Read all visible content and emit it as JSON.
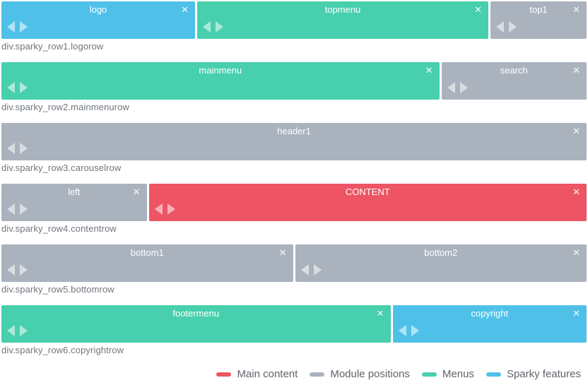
{
  "colors": {
    "content": "#ED5565",
    "module": "#AAB2BD",
    "menu": "#48CFAD",
    "sparky": "#4FC1E9"
  },
  "icons": {
    "close": "✕"
  },
  "rows": [
    {
      "label": "div.sparky_row1.logorow",
      "blocks": [
        {
          "name": "logo",
          "type": "sparky"
        },
        {
          "name": "topmenu",
          "type": "menu"
        },
        {
          "name": "top1",
          "type": "module"
        }
      ]
    },
    {
      "label": "div.sparky_row2.mainmenurow",
      "blocks": [
        {
          "name": "mainmenu",
          "type": "menu"
        },
        {
          "name": "search",
          "type": "module"
        }
      ]
    },
    {
      "label": "div.sparky_row3.carouselrow",
      "blocks": [
        {
          "name": "header1",
          "type": "module"
        }
      ]
    },
    {
      "label": "div.sparky_row4.contentrow",
      "blocks": [
        {
          "name": "left",
          "type": "module"
        },
        {
          "name": "CONTENT",
          "type": "content"
        }
      ]
    },
    {
      "label": "div.sparky_row5.bottomrow",
      "blocks": [
        {
          "name": "bottom1",
          "type": "module"
        },
        {
          "name": "bottom2",
          "type": "module"
        }
      ]
    },
    {
      "label": "div.sparky_row6.copyrightrow",
      "blocks": [
        {
          "name": "footermenu",
          "type": "menu"
        },
        {
          "name": "copyright",
          "type": "sparky"
        }
      ]
    }
  ],
  "legend": [
    {
      "label": "Main content",
      "color": "#ED5565"
    },
    {
      "label": "Module positions",
      "color": "#AAB2BD"
    },
    {
      "label": "Menus",
      "color": "#48CFAD"
    },
    {
      "label": "Sparky features",
      "color": "#4FC1E9"
    }
  ]
}
